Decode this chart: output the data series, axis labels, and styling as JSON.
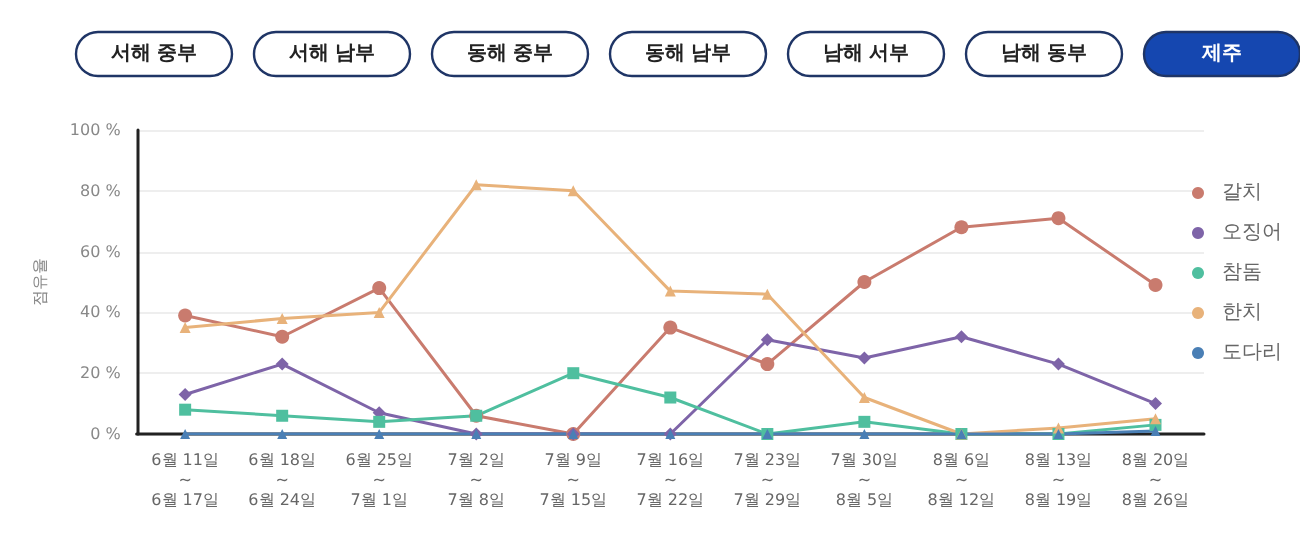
{
  "chart_data": {
    "type": "line",
    "ylabel": "점유율",
    "annotations": [
      "서해 중부",
      "서해 남부",
      "동해 중부",
      "동해 남부",
      "남해 서부",
      "남해 동부",
      "제주"
    ],
    "categories": [
      "6월 11일\n~\n6월 17일",
      "6월 18일\n~\n6월 24일",
      "6월 25일\n~\n7월 1일",
      "7월 2일\n~\n7월 8일",
      "7월 9일\n~\n7월 15일",
      "7월 16일\n~\n7월 22일",
      "7월 23일\n~\n7월 29일",
      "7월 30일\n~\n8월 5일",
      "8월 6일\n~\n8월 12일",
      "8월 13일\n~\n8월 19일",
      "8월 20일\n~\n8월 26일"
    ],
    "series": [
      {
        "name": "갈치",
        "color": "#c97b6e",
        "marker": "circle",
        "values": [
          39,
          32,
          48,
          6,
          0,
          35,
          23,
          50,
          68,
          71,
          49
        ]
      },
      {
        "name": "오징어",
        "color": "#7e64a8",
        "marker": "diamond",
        "values": [
          13,
          23,
          7,
          0,
          0,
          0,
          31,
          25,
          32,
          23,
          10
        ]
      },
      {
        "name": "참돔",
        "color": "#4fbf9f",
        "marker": "square",
        "values": [
          8,
          6,
          4,
          6,
          20,
          12,
          0,
          4,
          0,
          0,
          3
        ]
      },
      {
        "name": "한치",
        "color": "#e8b27a",
        "marker": "triangle",
        "values": [
          35,
          38,
          40,
          82,
          80,
          47,
          46,
          12,
          0,
          2,
          5
        ]
      },
      {
        "name": "도다리",
        "color": "#4a7fb5",
        "marker": "triangle",
        "values": [
          0,
          0,
          0,
          0,
          0,
          0,
          0,
          0,
          0,
          0,
          1
        ]
      }
    ],
    "ylim": [
      0,
      100
    ],
    "yticks": [
      {
        "value": 0,
        "label": "0 %"
      },
      {
        "value": 20,
        "label": "20 %"
      },
      {
        "value": 40,
        "label": "40 %"
      },
      {
        "value": 60,
        "label": "60 %"
      },
      {
        "value": 80,
        "label": "80 %"
      },
      {
        "value": 100,
        "label": "100 %"
      }
    ],
    "grid": "y",
    "legend": "right"
  }
}
